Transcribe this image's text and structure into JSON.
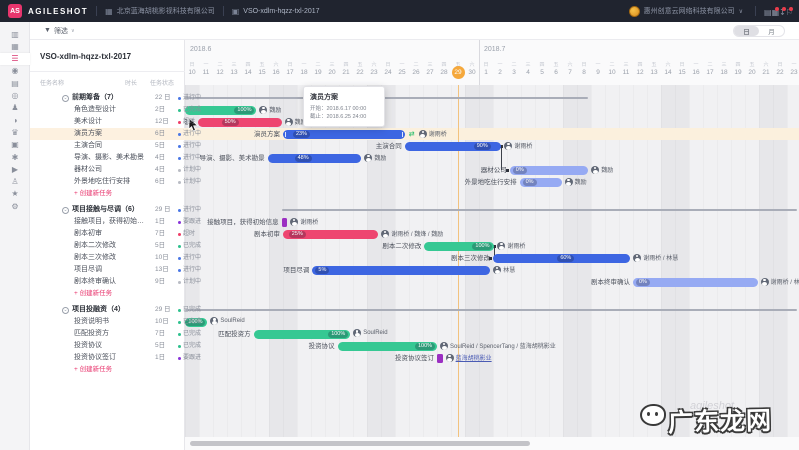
{
  "topbar": {
    "logo_text": "AS",
    "brand": "AGILESHOT",
    "org": "北京蓝海胡桃影视科技有限公司",
    "project": "VSO-xdlm-hqzz-txl-2017",
    "user_org": "惠州创意云网络科技有限公司",
    "right_icons": [
      {
        "name": "report-icon",
        "glyph": "▤",
        "badge": false
      },
      {
        "name": "calendar-icon",
        "glyph": "▦",
        "badge": true
      },
      {
        "name": "download-icon",
        "glyph": "↧",
        "badge": true
      },
      {
        "name": "notifications-icon",
        "glyph": "⚐",
        "badge": true
      }
    ]
  },
  "toolbar": {
    "filter_label": "筛选",
    "view_day": "日",
    "view_month": "月"
  },
  "rail_icons": [
    {
      "name": "dashboard-icon",
      "glyph": "▥"
    },
    {
      "name": "projects-icon",
      "glyph": "▦"
    },
    {
      "name": "gantt-icon",
      "glyph": "☰",
      "active": true
    },
    {
      "name": "budget-icon",
      "glyph": "◉"
    },
    {
      "name": "card-icon",
      "glyph": "▤"
    },
    {
      "name": "location-icon",
      "glyph": "◎"
    },
    {
      "name": "casting-icon",
      "glyph": "♟"
    },
    {
      "name": "schedule-icon",
      "glyph": "◑"
    },
    {
      "name": "props-icon",
      "glyph": "♛"
    },
    {
      "name": "assets-icon",
      "glyph": "▣"
    },
    {
      "name": "makeup-icon",
      "glyph": "✱"
    },
    {
      "name": "video-icon",
      "glyph": "▶"
    },
    {
      "name": "crew-icon",
      "glyph": "♙"
    },
    {
      "name": "favorites-icon",
      "glyph": "★"
    },
    {
      "name": "settings-icon",
      "glyph": "⚙"
    }
  ],
  "panel": {
    "title": "VSO-xdlm-hqzz-txl-2017",
    "columns": {
      "name": "任务名称",
      "duration": "时长",
      "status": "任务状态"
    },
    "create_label": "+ 创建新任务"
  },
  "status_colors": {
    "进行中": "#4a77e5",
    "已完成": "#2fc18e",
    "超时": "#ef3d67",
    "计划中": "#b9bcc4",
    "要跟进": "#8834d8"
  },
  "groups": [
    {
      "name": "前期筹备（7）",
      "duration": "22 日",
      "status": "进行中",
      "tasks": [
        {
          "name": "角色造型设计",
          "duration": "2日",
          "status": "已完成"
        },
        {
          "name": "美术设计",
          "duration": "12日",
          "status": "超时"
        },
        {
          "name": "演员方案",
          "duration": "6日",
          "status": "进行中",
          "selected": true
        },
        {
          "name": "主演合同",
          "duration": "5日",
          "status": "进行中"
        },
        {
          "name": "导演、摄影、美术勘景",
          "duration": "4日",
          "status": "进行中"
        },
        {
          "name": "器材公司",
          "duration": "4日",
          "status": "计划中"
        },
        {
          "name": "外景地吃住行安排",
          "duration": "6日",
          "status": "计划中"
        }
      ]
    },
    {
      "name": "项目接触与尽调（6）",
      "duration": "29 日",
      "status": "进行中",
      "tasks": [
        {
          "name": "接触项目，获得初始信...",
          "duration": "1日",
          "status": "要跟进"
        },
        {
          "name": "剧本初审",
          "duration": "7日",
          "status": "超时"
        },
        {
          "name": "剧本二次修改",
          "duration": "5日",
          "status": "已完成"
        },
        {
          "name": "剧本三次修改",
          "duration": "10日",
          "status": "进行中"
        },
        {
          "name": "项目尽调",
          "duration": "13日",
          "status": "进行中"
        },
        {
          "name": "剧本终审确认",
          "duration": "9日",
          "status": "计划中"
        }
      ]
    },
    {
      "name": "项目投融资（4）",
      "duration": "29 日",
      "status": "已完成",
      "tasks": [
        {
          "name": "投资说明书",
          "duration": "10日",
          "status": "已完成"
        },
        {
          "name": "匹配投资方",
          "duration": "7日",
          "status": "已完成"
        },
        {
          "name": "投资协议",
          "duration": "5日",
          "status": "已完成"
        },
        {
          "name": "投资协议签订",
          "duration": "1日",
          "status": "要跟进"
        }
      ]
    }
  ],
  "gantt": {
    "months": [
      {
        "label": "2018.6",
        "days": [
          [
            10,
            "日"
          ],
          [
            11,
            "一"
          ],
          [
            12,
            "二"
          ],
          [
            13,
            "三"
          ],
          [
            14,
            "四"
          ],
          [
            15,
            "五"
          ],
          [
            16,
            "六"
          ],
          [
            17,
            "日"
          ],
          [
            18,
            "一"
          ],
          [
            19,
            "二"
          ],
          [
            20,
            "三"
          ],
          [
            21,
            "四"
          ],
          [
            22,
            "五"
          ],
          [
            23,
            "六"
          ],
          [
            24,
            "日"
          ],
          [
            25,
            "一"
          ],
          [
            26,
            "二"
          ],
          [
            27,
            "三"
          ],
          [
            28,
            "四"
          ],
          [
            29,
            "五"
          ],
          [
            30,
            "六"
          ]
        ]
      },
      {
        "label": "2018.7",
        "days": [
          [
            1,
            "日"
          ],
          [
            2,
            "一"
          ],
          [
            3,
            "二"
          ],
          [
            4,
            "三"
          ],
          [
            5,
            "四"
          ],
          [
            6,
            "五"
          ],
          [
            7,
            "六"
          ],
          [
            8,
            "日"
          ],
          [
            9,
            "一"
          ],
          [
            10,
            "二"
          ],
          [
            11,
            "三"
          ],
          [
            12,
            "四"
          ],
          [
            13,
            "五"
          ],
          [
            14,
            "六"
          ],
          [
            15,
            "日"
          ],
          [
            16,
            "一"
          ],
          [
            17,
            "二"
          ],
          [
            18,
            "三"
          ],
          [
            19,
            "四"
          ],
          [
            20,
            "五"
          ],
          [
            21,
            "六"
          ],
          [
            22,
            "日"
          ],
          [
            23,
            "一"
          ]
        ]
      }
    ],
    "today_index": 19,
    "selected_row": 3,
    "bars": [
      {
        "row": 1,
        "start": 0,
        "end": 5.1,
        "color": "green",
        "progress": 100,
        "assignees": "魏励"
      },
      {
        "row": 2,
        "start": 0.9,
        "end": 6.9,
        "color": "red",
        "progress": 50,
        "label": "美术设计",
        "assignees": "魏励"
      },
      {
        "row": 3,
        "start": 7,
        "end": 15.7,
        "color": "blue",
        "progress": 23,
        "label": "演员方案",
        "assignees": "谢雨桥",
        "handles": true,
        "link": true
      },
      {
        "row": 4,
        "start": 15.7,
        "end": 22.6,
        "color": "blue",
        "progress": 90,
        "label": "主演合同",
        "assignees": "谢雨桥"
      },
      {
        "row": 5,
        "start": 5.9,
        "end": 12.6,
        "color": "blue",
        "progress": 48,
        "label": "导演、摄影、美术勘景",
        "assignees": "魏励"
      },
      {
        "row": 6,
        "start": 23.2,
        "end": 28.8,
        "color": "lightblue",
        "progress": 0,
        "label": "器材公司",
        "assignees": "魏励"
      },
      {
        "row": 7,
        "start": 23.9,
        "end": 26.9,
        "color": "lightblue",
        "progress": 0,
        "label": "外景地吃住行安排",
        "assignees": "魏励"
      },
      {
        "row": 10,
        "start": 6.9,
        "end": 7.3,
        "color": "purple",
        "milestone": true,
        "label": "接触项目，获得初始信息",
        "assignees": "谢雨桥"
      },
      {
        "row": 11,
        "start": 7,
        "end": 13.8,
        "color": "red",
        "progress": 25,
        "label": "剧本初审",
        "assignees": "谢雨桥 / 魏烽 / 魏励"
      },
      {
        "row": 12,
        "start": 17.1,
        "end": 22.1,
        "color": "green",
        "progress": 100,
        "label": "剧本二次修改",
        "assignees": "谢雨桥"
      },
      {
        "row": 13,
        "start": 22,
        "end": 31.8,
        "color": "blue",
        "progress": 60,
        "label": "剧本三次修改",
        "assignees": "谢雨桥 / 林慧"
      },
      {
        "row": 14,
        "start": 9.1,
        "end": 21.8,
        "color": "blue",
        "progress": 5,
        "label": "项目尽调",
        "assignees": "林慧"
      },
      {
        "row": 15,
        "start": 32,
        "end": 40.9,
        "color": "lightblue",
        "progress": 0,
        "label": "剧本终审确认",
        "assignees": "谢雨桥 / 林慧"
      },
      {
        "row": 18,
        "start": 0,
        "end": 1.6,
        "color": "green",
        "progress": 100,
        "assignees": "SoulReid"
      },
      {
        "row": 19,
        "start": 4.9,
        "end": 11.8,
        "color": "green",
        "progress": 100,
        "label": "匹配投资方",
        "assignees": "SoulReid"
      },
      {
        "row": 20,
        "start": 10.9,
        "end": 18,
        "color": "green",
        "progress": 100,
        "label": "投资协议",
        "assignees": "SoulReid / SpencerTang / 蓝海胡桃影业"
      },
      {
        "row": 21,
        "start": 18,
        "end": 18.4,
        "color": "purple",
        "milestone": true,
        "label": "投资协议签订",
        "assignees": "蓝海胡桃影业",
        "assignee_link": true
      }
    ],
    "summaries": [
      {
        "row": 0,
        "start": 0,
        "end": 28.8
      },
      {
        "row": 9,
        "start": 6.9,
        "end": 43.7
      },
      {
        "row": 17,
        "start": 0,
        "end": 43.7
      }
    ],
    "connectors": [
      {
        "day": 22.6,
        "from_row": 4,
        "to_row": 6,
        "to_day": 23.2
      },
      {
        "day": 22.05,
        "from_row": 12,
        "to_row": 13,
        "to_day": 22
      }
    ],
    "tooltip": {
      "title": "演员方案",
      "line1": "开始：2018.6.17  00:00",
      "line2": "截止：2018.6.25  24:00"
    }
  },
  "watermark": {
    "text": "广东龙网",
    "bg_text": "agileshot"
  }
}
